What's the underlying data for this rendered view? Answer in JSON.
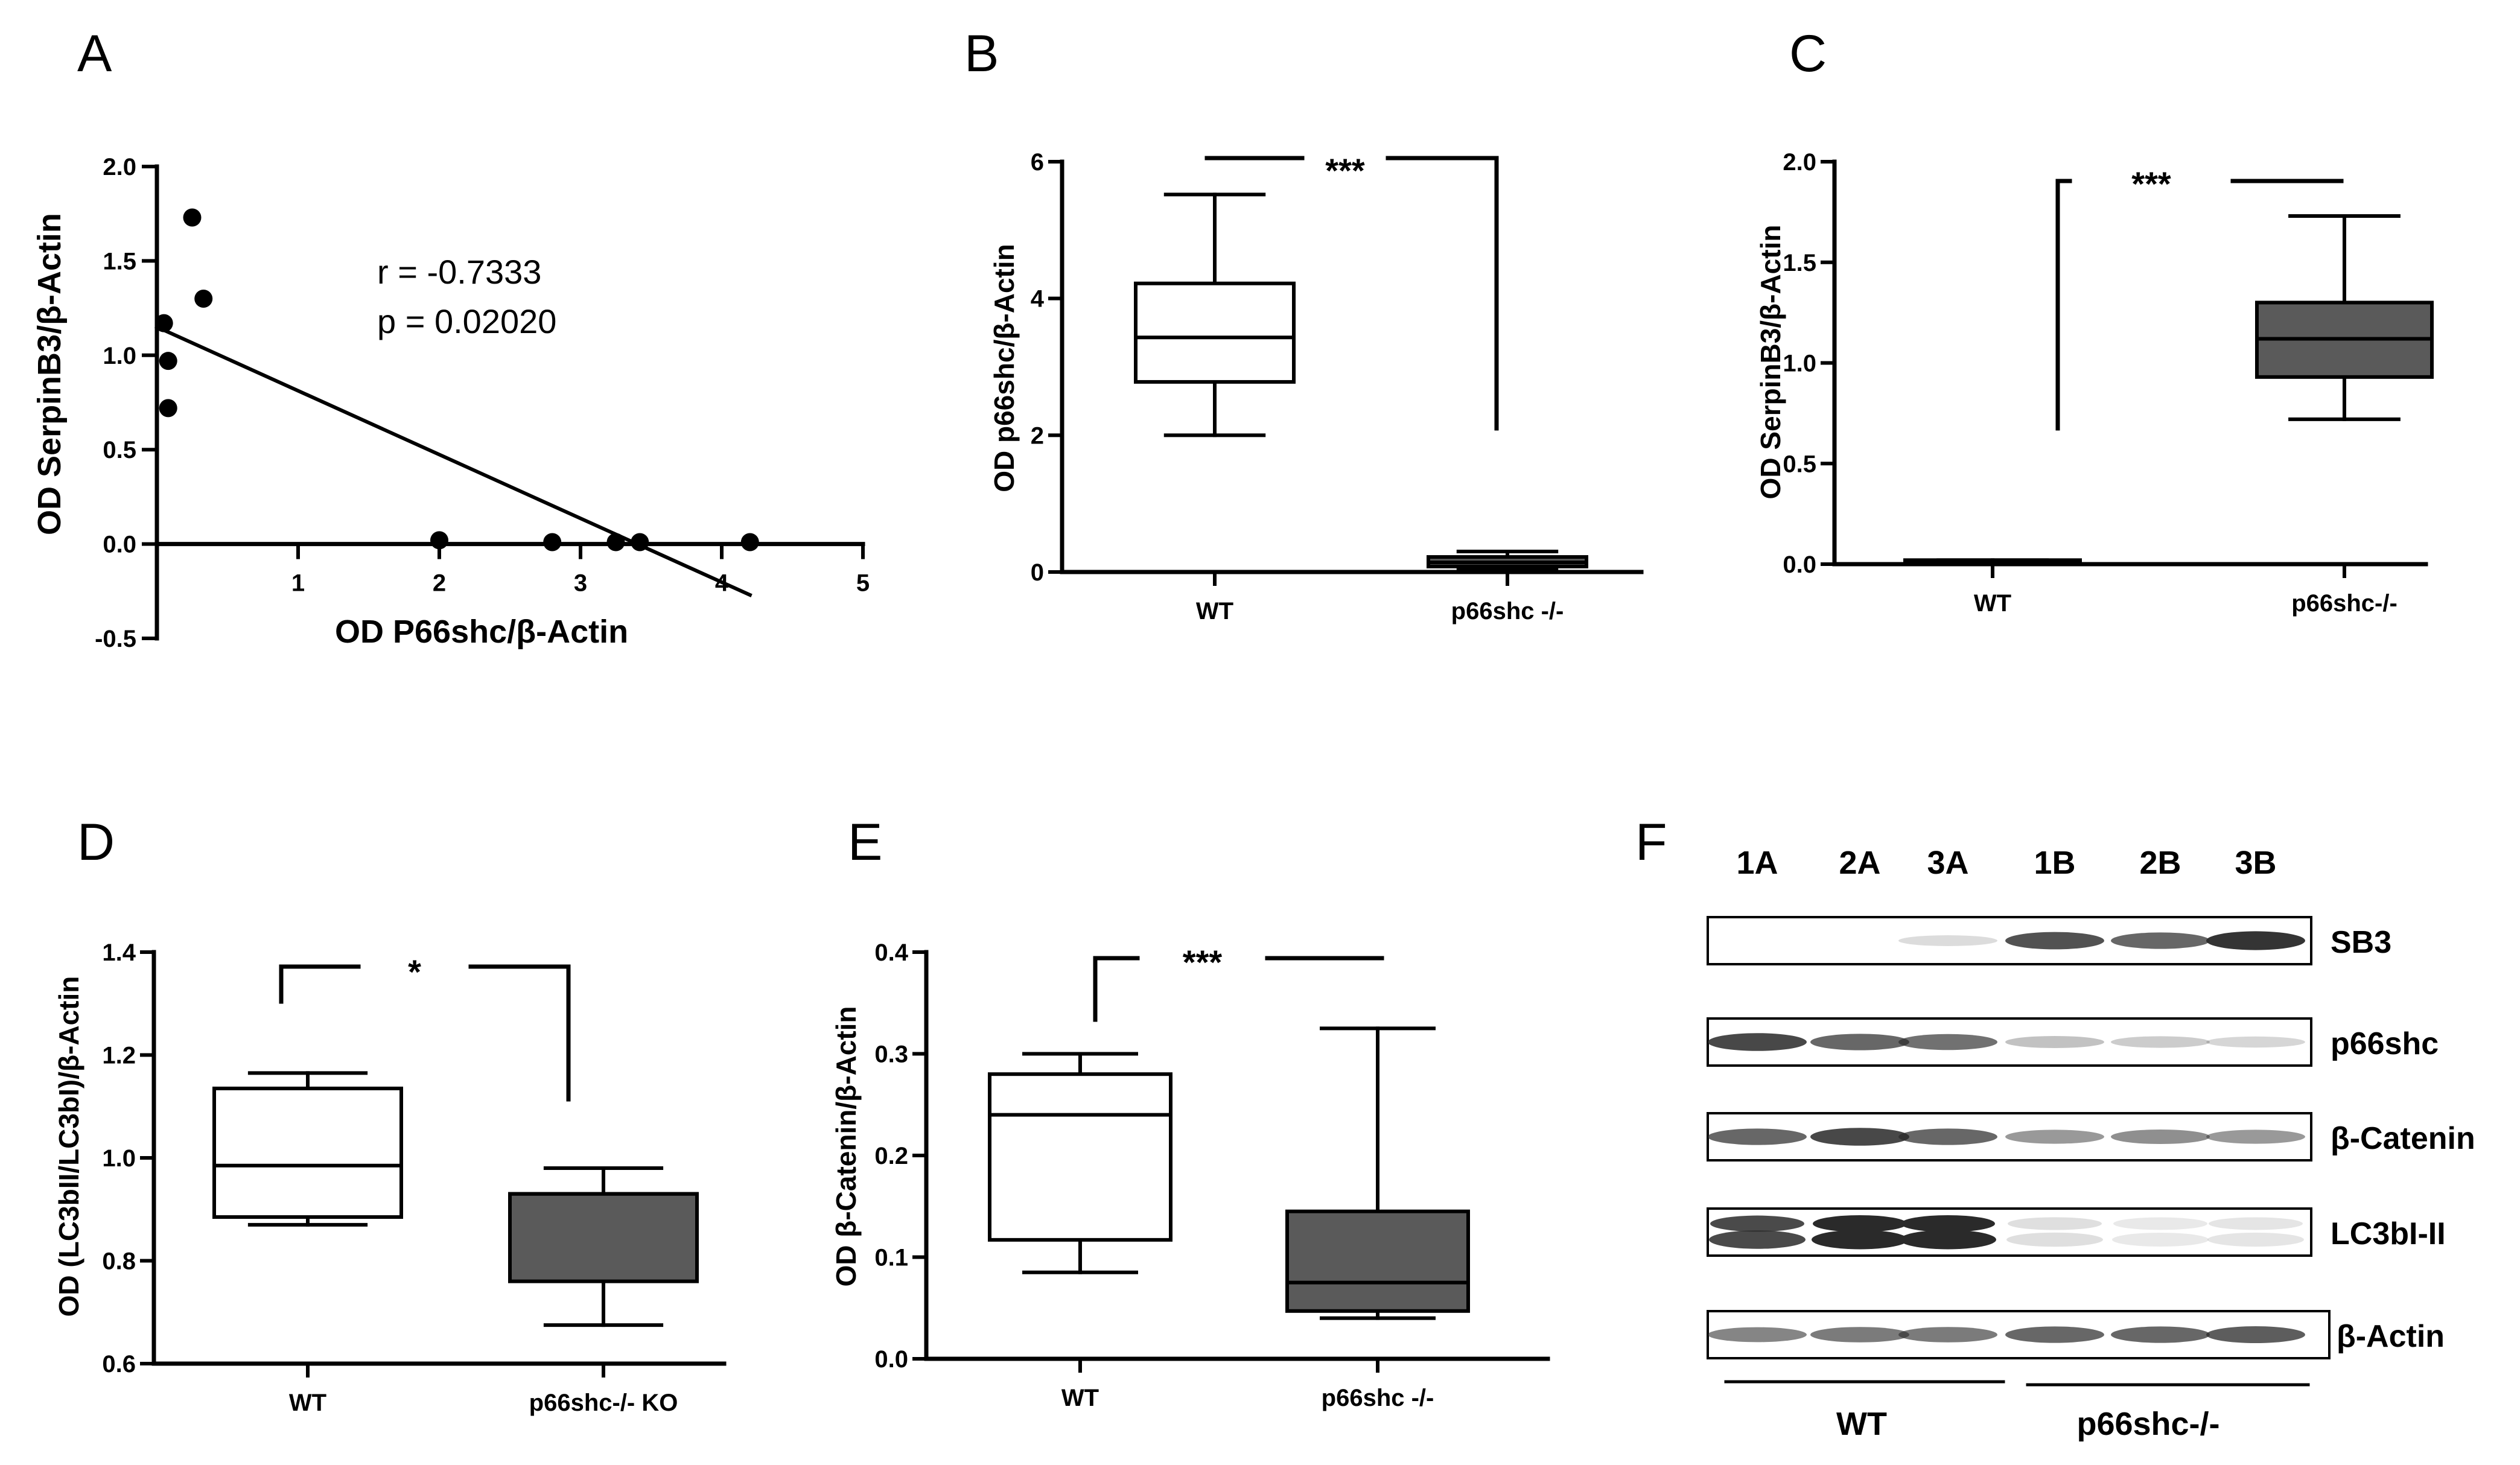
{
  "panel_letters": [
    "A",
    "B",
    "C",
    "D",
    "E",
    "F"
  ],
  "colors": {
    "ink": "#000000",
    "box_fill_ko": "#5a5a5a",
    "box_fill_wt": "#ffffff",
    "band": "#2a2a2a"
  },
  "chart_data": [
    {
      "id": "A",
      "type": "scatter",
      "xlabel": "OD P66shc/β-Actin",
      "ylabel": "OD SerpinB3/β-Actin",
      "xlim": [
        0,
        5
      ],
      "ylim": [
        -0.5,
        2.0
      ],
      "xticks": [
        1,
        2,
        3,
        4,
        5
      ],
      "yticks": [
        -0.5,
        0.0,
        0.5,
        1.0,
        1.5,
        2.0
      ],
      "ytick_labels": [
        "-0.5",
        "0.0",
        "0.5",
        "1.0",
        "1.5",
        "2.0"
      ],
      "points": [
        {
          "x": 0.05,
          "y": 1.17
        },
        {
          "x": 0.08,
          "y": 0.97
        },
        {
          "x": 0.08,
          "y": 0.72
        },
        {
          "x": 0.25,
          "y": 1.73
        },
        {
          "x": 0.33,
          "y": 1.3
        },
        {
          "x": 2.0,
          "y": 0.02
        },
        {
          "x": 2.8,
          "y": 0.01
        },
        {
          "x": 3.25,
          "y": 0.01
        },
        {
          "x": 3.42,
          "y": 0.01
        },
        {
          "x": 4.2,
          "y": 0.01
        }
      ],
      "fit_line": {
        "x": [
          0.0,
          4.2
        ],
        "y": [
          1.15,
          -0.27
        ]
      },
      "annotations": [
        "r = -0.7333",
        "p = 0.02020"
      ]
    },
    {
      "id": "B",
      "type": "box",
      "ylabel": "OD p66shc/β-Actin",
      "ylim": [
        0,
        6
      ],
      "yticks": [
        0,
        2,
        4,
        6
      ],
      "ytick_labels": [
        "0",
        "2",
        "4",
        "6"
      ],
      "categories": [
        "WT",
        "p66shc -/-"
      ],
      "boxes": [
        {
          "min": 2.0,
          "q1": 2.78,
          "median": 3.43,
          "q3": 4.22,
          "max": 5.52
        },
        {
          "min": 0.05,
          "q1": 0.08,
          "median": 0.14,
          "q3": 0.22,
          "max": 0.3
        }
      ],
      "significance": "***"
    },
    {
      "id": "C",
      "type": "box",
      "ylabel": "OD SerpinB3/β-Actin",
      "ylim": [
        0,
        2.0
      ],
      "yticks": [
        0.0,
        0.5,
        1.0,
        1.5,
        2.0
      ],
      "ytick_labels": [
        "0.0",
        "0.5",
        "1.0",
        "1.5",
        "2.0"
      ],
      "categories": [
        "WT",
        "p66shc-/-"
      ],
      "boxes": [
        {
          "min": 0.0,
          "q1": 0.0,
          "median": 0.01,
          "q3": 0.02,
          "max": 0.02
        },
        {
          "min": 0.72,
          "q1": 0.93,
          "median": 1.12,
          "q3": 1.3,
          "max": 1.73
        }
      ],
      "significance": "***"
    },
    {
      "id": "D",
      "type": "box",
      "ylabel": "OD (LC3bII/LC3bI)/β-Actin",
      "ylim": [
        0.6,
        1.4
      ],
      "yticks": [
        0.6,
        0.8,
        1.0,
        1.2,
        1.4
      ],
      "ytick_labels": [
        "0.6",
        "0.8",
        "1.0",
        "1.2",
        "1.4"
      ],
      "categories": [
        "WT",
        "p66shc-/- KO"
      ],
      "boxes": [
        {
          "min": 0.87,
          "q1": 0.885,
          "median": 0.985,
          "q3": 1.135,
          "max": 1.165
        },
        {
          "min": 0.675,
          "q1": 0.76,
          "median": 0.93,
          "q3": 0.93,
          "max": 0.98
        }
      ],
      "significance": "*"
    },
    {
      "id": "E",
      "type": "box",
      "ylabel": "OD β-Catenin/β-Actin",
      "ylim": [
        0.0,
        0.4
      ],
      "yticks": [
        0.0,
        0.1,
        0.2,
        0.3,
        0.4
      ],
      "ytick_labels": [
        "0.0",
        "0.1",
        "0.2",
        "0.3",
        "0.4"
      ],
      "categories": [
        "WT",
        "p66shc -/-"
      ],
      "boxes": [
        {
          "min": 0.085,
          "q1": 0.117,
          "median": 0.24,
          "q3": 0.28,
          "max": 0.3
        },
        {
          "min": 0.04,
          "q1": 0.047,
          "median": 0.075,
          "q3": 0.145,
          "max": 0.325
        }
      ],
      "significance": "***"
    }
  ],
  "blot": {
    "lanes": [
      "1A",
      "2A",
      "3A",
      "1B",
      "2B",
      "3B"
    ],
    "bands": [
      {
        "label": "SB3",
        "intensity": [
          0.0,
          0.0,
          0.12,
          0.8,
          0.7,
          0.95
        ]
      },
      {
        "label": "p66shc",
        "intensity": [
          0.85,
          0.7,
          0.65,
          0.25,
          0.2,
          0.15
        ]
      },
      {
        "label": "β-Catenin",
        "intensity": [
          0.7,
          0.85,
          0.7,
          0.45,
          0.5,
          0.45
        ]
      },
      {
        "label": "LC3bI-II",
        "intensity": [
          0.85,
          1.0,
          1.0,
          0.15,
          0.1,
          0.12
        ]
      },
      {
        "label": "β-Actin",
        "intensity": [
          0.55,
          0.6,
          0.6,
          0.7,
          0.7,
          0.75
        ]
      }
    ],
    "groups": [
      "WT",
      "p66shc-/-"
    ]
  }
}
